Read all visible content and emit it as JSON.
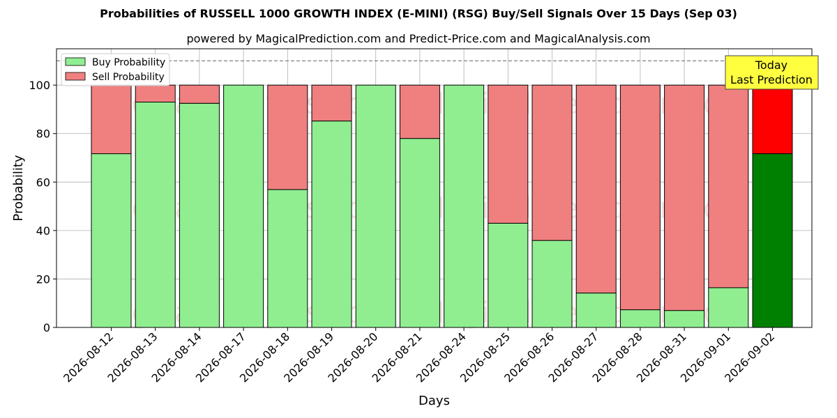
{
  "chart_data": {
    "type": "bar",
    "stacked": true,
    "title": "Probabilities of RUSSELL 1000 GROWTH INDEX (E-MINI) (RSG) Buy/Sell Signals Over 15 Days (Sep 03)",
    "subtitle": "powered by MagicalPrediction.com and Predict-Price.com and MagicalAnalysis.com",
    "xlabel": "Days",
    "ylabel": "Probability",
    "ylim": [
      0,
      115
    ],
    "yticks": [
      0,
      20,
      40,
      60,
      80,
      100
    ],
    "reference_line": 110,
    "grid": true,
    "legend_position": "top-left",
    "categories": [
      "2026-08-12",
      "2026-08-13",
      "2026-08-14",
      "2026-08-17",
      "2026-08-18",
      "2026-08-19",
      "2026-08-20",
      "2026-08-21",
      "2026-08-24",
      "2026-08-25",
      "2026-08-26",
      "2026-08-27",
      "2026-08-28",
      "2026-08-31",
      "2026-09-01",
      "2026-09-02"
    ],
    "series": [
      {
        "name": "Buy Probability",
        "color": "#90ee90",
        "highlight_color": "#008000",
        "values": [
          71.7,
          93.0,
          92.5,
          100.0,
          56.9,
          85.2,
          100.0,
          78.0,
          100.0,
          43.0,
          35.9,
          14.2,
          7.3,
          7.0,
          16.4,
          71.7
        ]
      },
      {
        "name": "Sell Probability",
        "color": "#f08080",
        "highlight_color": "#ff0000",
        "values": [
          28.3,
          7.0,
          7.5,
          0.0,
          43.1,
          14.8,
          0.0,
          22.0,
          0.0,
          57.0,
          64.1,
          85.8,
          92.7,
          93.0,
          83.6,
          28.3
        ]
      }
    ],
    "annotation": {
      "lines": [
        "Today",
        "Last Prediction"
      ],
      "background": "#ffff40"
    },
    "watermarks": [
      "MagicalAnalysis.com",
      "MagicalPrediction.com"
    ]
  }
}
